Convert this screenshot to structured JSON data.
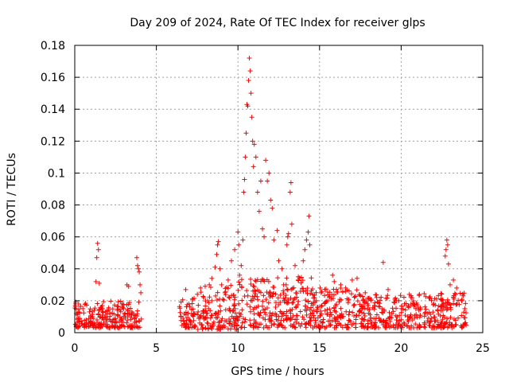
{
  "chart_data": {
    "type": "scatter",
    "title": "Day 209 of 2024, Rate Of TEC Index for receiver glps",
    "xlabel": "GPS time / hours",
    "ylabel": "ROTI / TECUs",
    "xlim": [
      0,
      25
    ],
    "ylim": [
      0,
      0.18
    ],
    "x_ticks": [
      0,
      5,
      10,
      15,
      20,
      25
    ],
    "y_ticks": [
      0,
      0.02,
      0.04,
      0.06,
      0.08,
      0.1,
      0.12,
      0.14,
      0.16,
      0.18
    ],
    "x_tick_labels": [
      "0",
      "5",
      "10",
      "15",
      "20",
      "25"
    ],
    "y_tick_labels": [
      "0",
      "0.02",
      "0.04",
      "0.06",
      "0.08",
      "0.1",
      "0.12",
      "0.14",
      "0.16",
      "0.18"
    ],
    "grid": true,
    "marker": "+",
    "marker_color": "#ff0000",
    "series": [
      {
        "points": [
          [
            0.1,
            0.012
          ],
          [
            0.3,
            0.009
          ],
          [
            0.5,
            0.015
          ],
          [
            0.7,
            0.008
          ],
          [
            0.9,
            0.013
          ],
          [
            1.1,
            0.01
          ],
          [
            1.3,
            0.032
          ],
          [
            1.35,
            0.047
          ],
          [
            1.4,
            0.056
          ],
          [
            1.45,
            0.052
          ],
          [
            1.5,
            0.031
          ],
          [
            1.7,
            0.011
          ],
          [
            2.0,
            0.009
          ],
          [
            2.3,
            0.012
          ],
          [
            2.6,
            0.014
          ],
          [
            2.9,
            0.018
          ],
          [
            3.2,
            0.03
          ],
          [
            3.3,
            0.029
          ],
          [
            3.5,
            0.013
          ],
          [
            3.8,
            0.047
          ],
          [
            3.85,
            0.042
          ],
          [
            3.9,
            0.04
          ],
          [
            3.95,
            0.038
          ],
          [
            4.0,
            0.03
          ],
          [
            4.05,
            0.025
          ],
          [
            6.5,
            0.01
          ],
          [
            6.8,
            0.027
          ],
          [
            7.0,
            0.018
          ],
          [
            7.3,
            0.012
          ],
          [
            7.6,
            0.009
          ],
          [
            7.9,
            0.022
          ],
          [
            8.2,
            0.015
          ],
          [
            8.4,
            0.034
          ],
          [
            8.6,
            0.041
          ],
          [
            8.7,
            0.049
          ],
          [
            8.75,
            0.055
          ],
          [
            8.8,
            0.057
          ],
          [
            8.9,
            0.04
          ],
          [
            9.0,
            0.03
          ],
          [
            9.2,
            0.025
          ],
          [
            9.4,
            0.033
          ],
          [
            9.6,
            0.045
          ],
          [
            9.8,
            0.052
          ],
          [
            10.0,
            0.063
          ],
          [
            10.05,
            0.055
          ],
          [
            10.1,
            0.036
          ],
          [
            10.2,
            0.042
          ],
          [
            10.3,
            0.058
          ],
          [
            10.35,
            0.088
          ],
          [
            10.4,
            0.096
          ],
          [
            10.45,
            0.11
          ],
          [
            10.5,
            0.125
          ],
          [
            10.55,
            0.143
          ],
          [
            10.6,
            0.142
          ],
          [
            10.65,
            0.158
          ],
          [
            10.7,
            0.172
          ],
          [
            10.75,
            0.164
          ],
          [
            10.8,
            0.15
          ],
          [
            10.85,
            0.135
          ],
          [
            10.9,
            0.12
          ],
          [
            10.95,
            0.104
          ],
          [
            11.0,
            0.118
          ],
          [
            11.1,
            0.11
          ],
          [
            11.2,
            0.088
          ],
          [
            11.3,
            0.076
          ],
          [
            11.4,
            0.095
          ],
          [
            11.5,
            0.065
          ],
          [
            11.6,
            0.06
          ],
          [
            11.7,
            0.108
          ],
          [
            11.8,
            0.095
          ],
          [
            11.9,
            0.1
          ],
          [
            12.0,
            0.083
          ],
          [
            12.1,
            0.078
          ],
          [
            12.2,
            0.058
          ],
          [
            12.4,
            0.064
          ],
          [
            12.5,
            0.045
          ],
          [
            12.7,
            0.04
          ],
          [
            12.8,
            0.03
          ],
          [
            13.0,
            0.055
          ],
          [
            13.05,
            0.06
          ],
          [
            13.1,
            0.062
          ],
          [
            13.2,
            0.088
          ],
          [
            13.25,
            0.094
          ],
          [
            13.3,
            0.068
          ],
          [
            13.5,
            0.042
          ],
          [
            13.7,
            0.035
          ],
          [
            14.0,
            0.045
          ],
          [
            14.1,
            0.052
          ],
          [
            14.2,
            0.058
          ],
          [
            14.3,
            0.063
          ],
          [
            14.35,
            0.073
          ],
          [
            14.4,
            0.055
          ],
          [
            14.8,
            0.02
          ],
          [
            15.1,
            0.025
          ],
          [
            15.5,
            0.02
          ],
          [
            15.8,
            0.036
          ],
          [
            15.9,
            0.032
          ],
          [
            16.3,
            0.03
          ],
          [
            16.6,
            0.028
          ],
          [
            17.0,
            0.033
          ],
          [
            17.3,
            0.034
          ],
          [
            17.8,
            0.025
          ],
          [
            18.5,
            0.022
          ],
          [
            18.9,
            0.044
          ],
          [
            19.2,
            0.027
          ],
          [
            19.7,
            0.02
          ],
          [
            20.2,
            0.018
          ],
          [
            20.5,
            0.024
          ],
          [
            20.9,
            0.015
          ],
          [
            21.6,
            0.012
          ],
          [
            22.0,
            0.018
          ],
          [
            22.5,
            0.02
          ],
          [
            22.7,
            0.048
          ],
          [
            22.75,
            0.052
          ],
          [
            22.8,
            0.058
          ],
          [
            22.85,
            0.055
          ],
          [
            22.9,
            0.043
          ],
          [
            23.0,
            0.03
          ],
          [
            23.2,
            0.033
          ],
          [
            23.4,
            0.028
          ],
          [
            23.7,
            0.02
          ],
          [
            23.9,
            0.015
          ]
        ],
        "bands": [
          {
            "x": [
              0.0,
              4.1
            ],
            "ymin": 0.003,
            "ymax": 0.02
          },
          {
            "x": [
              6.4,
              7.4
            ],
            "ymin": 0.003,
            "ymax": 0.022
          },
          {
            "x": [
              7.5,
              10.0
            ],
            "ymin": 0.002,
            "ymax": 0.03
          },
          {
            "x": [
              10.0,
              14.5
            ],
            "ymin": 0.003,
            "ymax": 0.035
          },
          {
            "x": [
              14.5,
              17.5
            ],
            "ymin": 0.003,
            "ymax": 0.028
          },
          {
            "x": [
              17.5,
              21.2
            ],
            "ymin": 0.003,
            "ymax": 0.024
          },
          {
            "x": [
              21.4,
              24.0
            ],
            "ymin": 0.003,
            "ymax": 0.025
          }
        ]
      }
    ]
  }
}
